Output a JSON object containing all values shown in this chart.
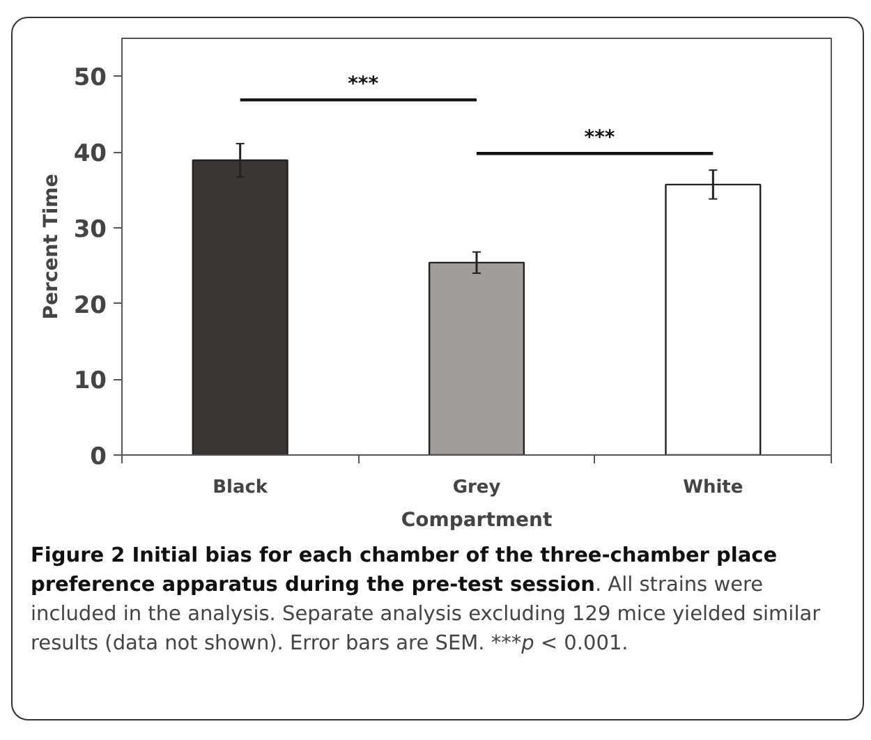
{
  "chart_data": {
    "type": "bar",
    "title": "Figure 2 Initial bias for each chamber of the three-chamber place preference apparatus during the pre-test session",
    "xlabel": "Compartment",
    "ylabel": "Percent Time",
    "categories": [
      "Black",
      "Grey",
      "White"
    ],
    "values": [
      38.9,
      25.4,
      35.7
    ],
    "errors": [
      2.2,
      1.4,
      1.9
    ],
    "colors": [
      "#3a3634",
      "#a09d9b",
      "#ffffff"
    ],
    "ylim": [
      0,
      55
    ],
    "yticks": [
      0,
      10,
      20,
      30,
      40,
      50
    ],
    "grid": false,
    "annotations": [
      "***",
      "***",
      ". All strains were included in the analysis. Separate analysis excluding 129 mice yielded similar results (data not shown). Error bars are SEM. ***p < 0.001."
    ]
  }
}
